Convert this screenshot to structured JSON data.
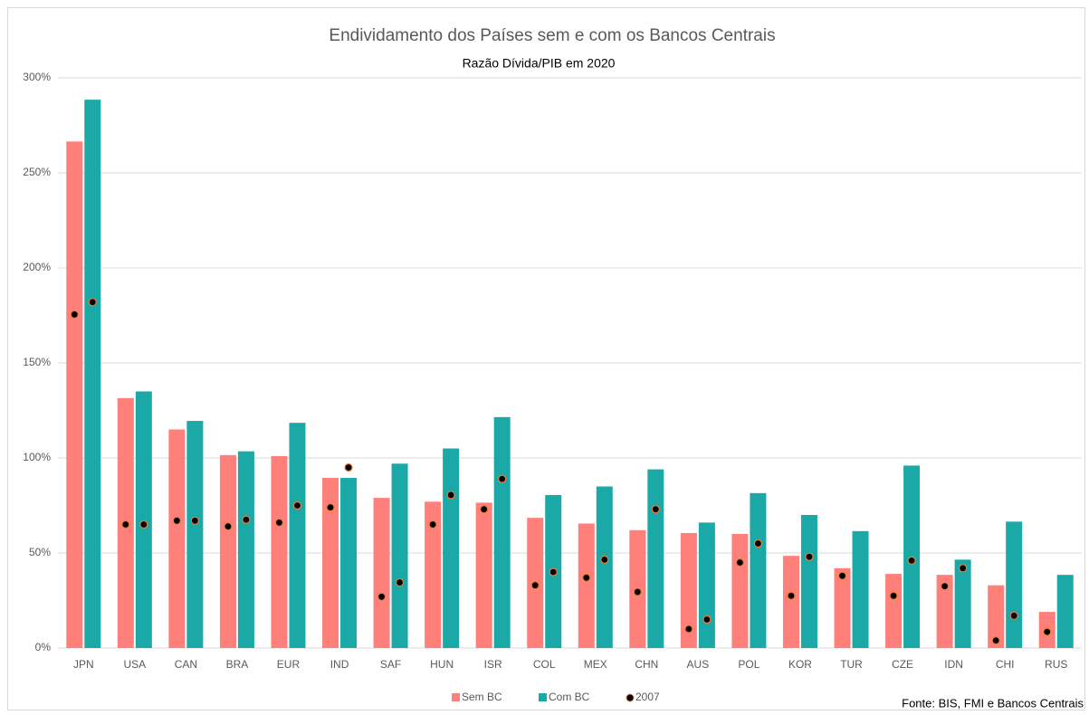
{
  "chart_data": {
    "type": "bar",
    "title": "Endividamento dos Países sem e com os Bancos Centrais",
    "subtitle": "Razão Dívida/PIB em 2020",
    "source": "Fonte: BIS, FMI e Bancos Centrais",
    "categories": [
      "JPN",
      "USA",
      "CAN",
      "BRA",
      "EUR",
      "IND",
      "SAF",
      "HUN",
      "ISR",
      "COL",
      "MEX",
      "CHN",
      "AUS",
      "POL",
      "KOR",
      "TUR",
      "CZE",
      "IDN",
      "CHI",
      "RUS"
    ],
    "series": [
      {
        "name": "Sem BC",
        "color": "#ff7f7a",
        "values": [
          266.5,
          131.5,
          115,
          101.5,
          101,
          89.5,
          79,
          77,
          76.5,
          68.5,
          65.5,
          62,
          60.5,
          60,
          48.5,
          42,
          39,
          38.5,
          33,
          19
        ]
      },
      {
        "name": "Com BC",
        "color": "#1aa9a6",
        "values": [
          288.5,
          135,
          119.5,
          103.5,
          118.5,
          89.5,
          97,
          105,
          121.5,
          80.5,
          85,
          94,
          66,
          81.5,
          70,
          61.5,
          96,
          46.5,
          66.5,
          38.5
        ]
      },
      {
        "name": "2007",
        "color": "#000000",
        "values": [
          175.5,
          65,
          67,
          64,
          66,
          74,
          27,
          65,
          73,
          33,
          37,
          29.5,
          10,
          45,
          27.5,
          38,
          27.5,
          32.5,
          4,
          8.5
        ]
      },
      {
        "color": "#000000",
        "values": [
          182,
          65,
          67,
          67.5,
          75,
          95,
          34.5,
          80.5,
          89,
          40,
          46.5,
          73,
          15,
          55,
          48,
          null,
          46,
          42,
          17,
          null
        ]
      }
    ],
    "ylim": [
      0,
      300
    ],
    "yticks": [
      {
        "value": 0,
        "label": "0%"
      },
      {
        "value": 50,
        "label": "50%"
      },
      {
        "value": 100,
        "label": "100%"
      },
      {
        "value": 150,
        "label": "150%"
      },
      {
        "value": 200,
        "label": "200%"
      },
      {
        "value": 250,
        "label": "250%"
      },
      {
        "value": 300,
        "label": "300%"
      }
    ],
    "grid": true
  }
}
